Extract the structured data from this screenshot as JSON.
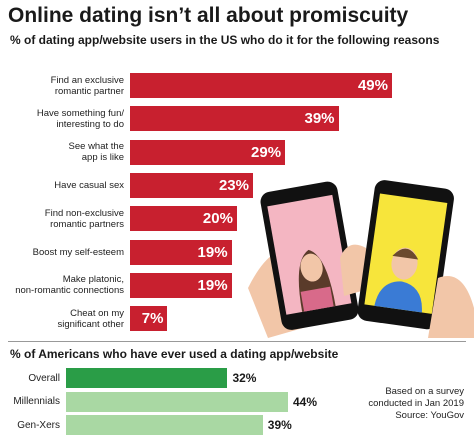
{
  "chart_data": [
    {
      "type": "bar",
      "orientation": "horizontal",
      "title": "Online dating isn’t all about promiscuity",
      "subtitle": "% of dating app/website users in the US who do it for the following reasons",
      "categories": [
        "Find an exclusive\nromantic partner",
        "Have something fun/\ninteresting to do",
        "See what the\napp is like",
        "Have casual sex",
        "Find non-exclusive\nromantic partners",
        "Boost my self-esteem",
        "Make platonic,\nnon-romantic connections",
        "Cheat on my\nsignificant other"
      ],
      "values": [
        49,
        39,
        29,
        23,
        20,
        19,
        19,
        7
      ],
      "value_labels": [
        "49%",
        "39%",
        "29%",
        "23%",
        "20%",
        "19%",
        "19%",
        "7%"
      ],
      "color": "#c8202f"
    },
    {
      "type": "bar",
      "orientation": "horizontal",
      "subtitle": "% of Americans who have ever used a dating app/website",
      "categories": [
        "Overall",
        "Millennials",
        "Gen-Xers"
      ],
      "values": [
        32,
        44,
        39
      ],
      "value_labels": [
        "32%",
        "44%",
        "39%"
      ],
      "colors": [
        "#2a9d47",
        "#a9d8a3",
        "#a9d8a3"
      ],
      "note": "Based on a survey\nconducted in Jan 2019\nSource: YouGov"
    }
  ]
}
